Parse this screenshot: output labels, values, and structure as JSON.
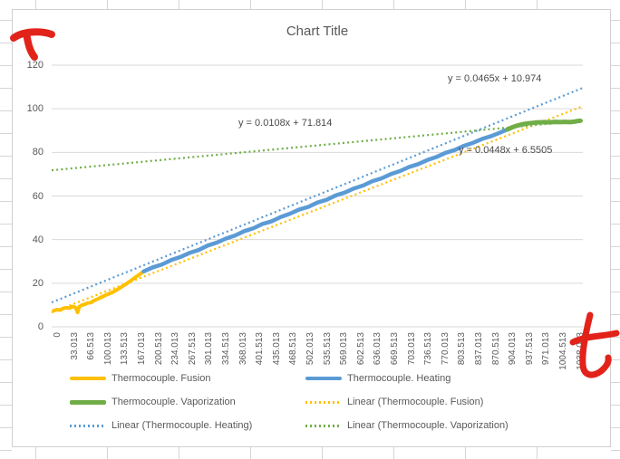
{
  "chart_data": {
    "type": "line",
    "title": "Chart Title",
    "xlabel": "",
    "ylabel": "",
    "ylim": [
      0,
      120
    ],
    "y_ticks": [
      0,
      20,
      40,
      60,
      80,
      100,
      120
    ],
    "x_time_range_seconds": [
      0,
      1045
    ],
    "grid": "horizontal",
    "legend_position": "bottom",
    "x_ticks": [
      "0",
      "33.013",
      "66.513",
      "100.013",
      "133.513",
      "167.013",
      "200.513",
      "234.013",
      "267.513",
      "301.013",
      "334.513",
      "368.013",
      "401.513",
      "435.013",
      "468.513",
      "502.013",
      "535.513",
      "569.013",
      "602.513",
      "636.013",
      "669.513",
      "703.013",
      "736.513",
      "770.013",
      "803.513",
      "837.013",
      "870.513",
      "904.013",
      "937.513",
      "971.013",
      "1004.513",
      "1038.013"
    ],
    "series": [
      {
        "name": "Thermocouple. Fusion",
        "color": "#FFC000",
        "style": "solid",
        "width": 4,
        "points": [
          [
            4,
            7.4
          ],
          [
            10,
            7.9
          ],
          [
            17,
            7.7
          ],
          [
            23,
            8.5
          ],
          [
            29,
            8.7
          ],
          [
            35,
            8.6
          ],
          [
            41,
            9.3
          ],
          [
            46,
            9.0
          ],
          [
            49,
            7.9
          ],
          [
            51,
            6.6
          ],
          [
            54,
            9.2
          ],
          [
            59,
            9.9
          ],
          [
            65,
            10.3
          ],
          [
            71,
            10.9
          ],
          [
            77,
            11.1
          ],
          [
            83,
            12.0
          ],
          [
            89,
            12.6
          ],
          [
            95,
            13.3
          ],
          [
            101,
            13.9
          ],
          [
            107,
            14.6
          ],
          [
            113,
            15.2
          ],
          [
            118,
            15.6
          ],
          [
            124,
            16.4
          ],
          [
            129,
            17.1
          ],
          [
            135,
            17.9
          ],
          [
            140,
            18.7
          ],
          [
            146,
            19.6
          ],
          [
            151,
            20.4
          ],
          [
            156,
            21.2
          ],
          [
            161,
            22.1
          ],
          [
            166,
            22.9
          ],
          [
            171,
            23.7
          ],
          [
            175,
            24.4
          ],
          [
            178,
            24.9
          ],
          [
            181,
            25.4
          ]
        ]
      },
      {
        "name": "Thermocouple. Heating",
        "color": "#5B9BD5",
        "style": "solid",
        "width": 4.5,
        "points": [
          [
            181,
            25.4
          ],
          [
            199,
            27.3
          ],
          [
            217,
            28.6
          ],
          [
            235,
            30.6
          ],
          [
            253,
            32.0
          ],
          [
            271,
            33.9
          ],
          [
            289,
            35.2
          ],
          [
            307,
            37.3
          ],
          [
            325,
            38.6
          ],
          [
            343,
            40.5
          ],
          [
            361,
            41.9
          ],
          [
            379,
            43.9
          ],
          [
            397,
            45.2
          ],
          [
            415,
            47.2
          ],
          [
            433,
            48.4
          ],
          [
            451,
            50.4
          ],
          [
            469,
            51.9
          ],
          [
            487,
            53.8
          ],
          [
            505,
            55.0
          ],
          [
            523,
            57.0
          ],
          [
            541,
            58.3
          ],
          [
            559,
            60.3
          ],
          [
            577,
            61.6
          ],
          [
            595,
            63.5
          ],
          [
            613,
            64.8
          ],
          [
            631,
            66.8
          ],
          [
            649,
            68.1
          ],
          [
            667,
            70.0
          ],
          [
            685,
            71.4
          ],
          [
            703,
            73.3
          ],
          [
            721,
            74.6
          ],
          [
            739,
            76.5
          ],
          [
            757,
            77.9
          ],
          [
            775,
            79.8
          ],
          [
            793,
            81.1
          ],
          [
            811,
            83.0
          ],
          [
            829,
            84.4
          ],
          [
            847,
            86.2
          ],
          [
            865,
            87.5
          ],
          [
            880,
            88.9
          ],
          [
            890,
            89.9
          ],
          [
            897,
            90.5
          ]
        ]
      },
      {
        "name": "Thermocouple. Vaporization",
        "color": "#70AD47",
        "style": "solid",
        "width": 5,
        "points": [
          [
            897,
            90.5
          ],
          [
            905,
            91.4
          ],
          [
            913,
            92.1
          ],
          [
            921,
            92.6
          ],
          [
            929,
            93.0
          ],
          [
            937,
            93.3
          ],
          [
            945,
            93.5
          ],
          [
            953,
            93.7
          ],
          [
            961,
            93.8
          ],
          [
            970,
            93.9
          ],
          [
            980,
            93.8
          ],
          [
            990,
            94.0
          ],
          [
            1000,
            93.9
          ],
          [
            1010,
            94.0
          ],
          [
            1020,
            93.9
          ],
          [
            1028,
            94.1
          ],
          [
            1034,
            94.4
          ],
          [
            1040,
            94.5
          ]
        ]
      }
    ],
    "trendlines": [
      {
        "name": "Linear (Thermocouple. Heating)",
        "color": "#5B9BD5",
        "equation": "y = 0.0465x + 10.974",
        "from": [
          0,
          11.2
        ],
        "to": [
          1045,
          109.6
        ]
      },
      {
        "name": "Linear (Thermocouple. Fusion)",
        "color": "#FFC000",
        "equation": "y = 0.0448x + 6.5505",
        "from": [
          0,
          6.6
        ],
        "to": [
          1045,
          101.2
        ]
      },
      {
        "name": "Linear (Thermocouple. Vaporization)",
        "color": "#70AD47",
        "equation": "y = 0.0108x + 71.814",
        "from": [
          0,
          71.8
        ],
        "to": [
          1045,
          94.6
        ]
      }
    ],
    "equation_labels": [
      {
        "text": "y = 0.0465x + 10.974",
        "pos": [
          494,
          81
        ]
      },
      {
        "text": "y = 0.0108x + 71.814",
        "pos": [
          263,
          130
        ]
      },
      {
        "text": "y = 0.0448x + 6.5505",
        "pos": [
          506,
          160
        ]
      }
    ],
    "legend": {
      "items": [
        {
          "label": "Thermocouple. Fusion",
          "color": "#FFC000",
          "style": "solid"
        },
        {
          "label": "Thermocouple. Heating",
          "color": "#5B9BD5",
          "style": "solid"
        },
        {
          "label": "Thermocouple. Vaporization",
          "color": "#70AD47",
          "style": "solid"
        },
        {
          "label": "Linear (Thermocouple. Fusion)",
          "color": "#FFC000",
          "style": "dotted"
        },
        {
          "label": "Linear (Thermocouple. Heating)",
          "color": "#5B9BD5",
          "style": "dotted"
        },
        {
          "label": "Linear (Thermocouple. Vaporization)",
          "color": "#70AD47",
          "style": "dotted"
        }
      ]
    }
  },
  "annotations": {
    "handwritten_top_left": "T",
    "handwritten_bottom_right": "t",
    "ink_color": "#e2231a"
  },
  "colors": {
    "gridline": "#d9d9d9",
    "axis_text": "#595959",
    "sheet_grid": "#d6d6d6"
  }
}
